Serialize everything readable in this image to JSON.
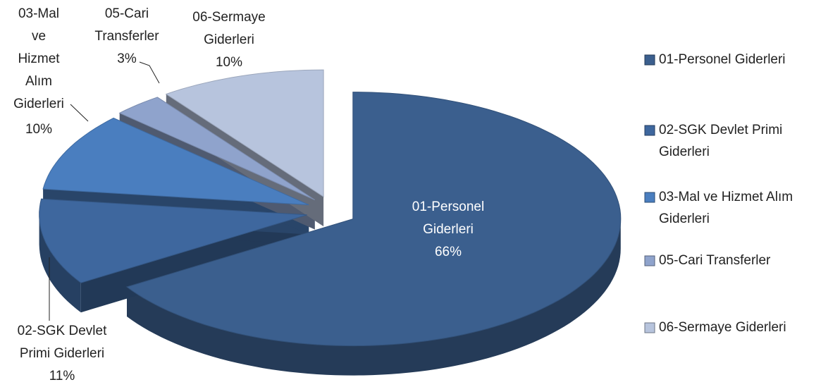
{
  "chart_data": {
    "type": "pie",
    "categories": [
      "01-Personel Giderleri",
      "02-SGK Devlet Primi Giderleri",
      "03-Mal ve Hizmet Alım Giderleri",
      "05-Cari Transferler",
      "06-Sermaye Giderleri"
    ],
    "values": [
      66,
      11,
      10,
      3,
      10
    ],
    "value_labels": [
      "66%",
      "11%",
      "10%",
      "3%",
      "10%"
    ],
    "colors": [
      "#3b5f8e",
      "#3e679e",
      "#4a7ebf",
      "#8fa3cc",
      "#b7c4dd"
    ],
    "legend": "right"
  }
}
